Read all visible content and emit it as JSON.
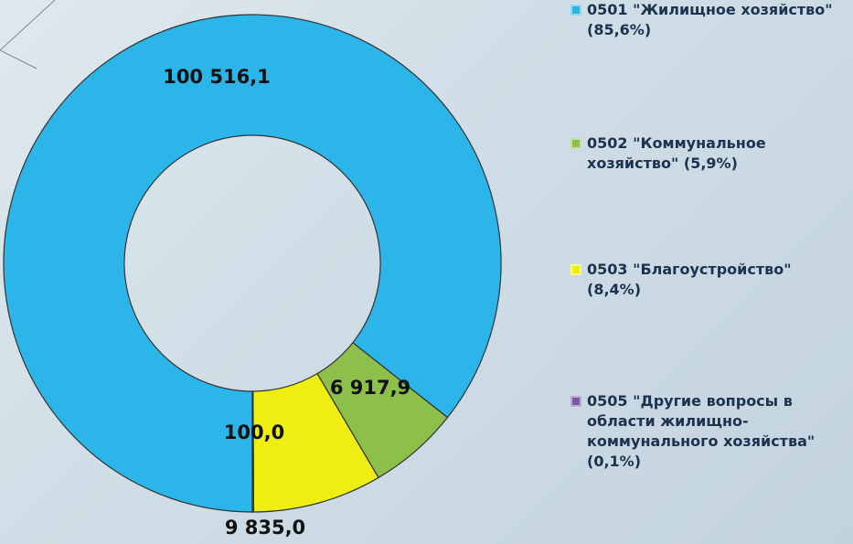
{
  "chart_data": {
    "type": "donut",
    "categories": [
      "0501 \"Жилищное хозяйство\" (85,6%)",
      "0502 \"Коммунальное хозяйство\" (5,9%)",
      "0503 \"Благоустройство\"(8,4%)",
      "0505 \"Другие вопросы в области жилищно-коммунального хозяйства\"(0,1%)"
    ],
    "values": [
      100516.1,
      6917.9,
      9835.0,
      100.0
    ],
    "value_labels": [
      "100 516,1",
      "6 917,9",
      "9 835,0",
      "100,0"
    ],
    "colors": [
      "#2bb5e8",
      "#8dbf4b",
      "#eeee10",
      "#7a58a5"
    ],
    "legend": "right"
  }
}
